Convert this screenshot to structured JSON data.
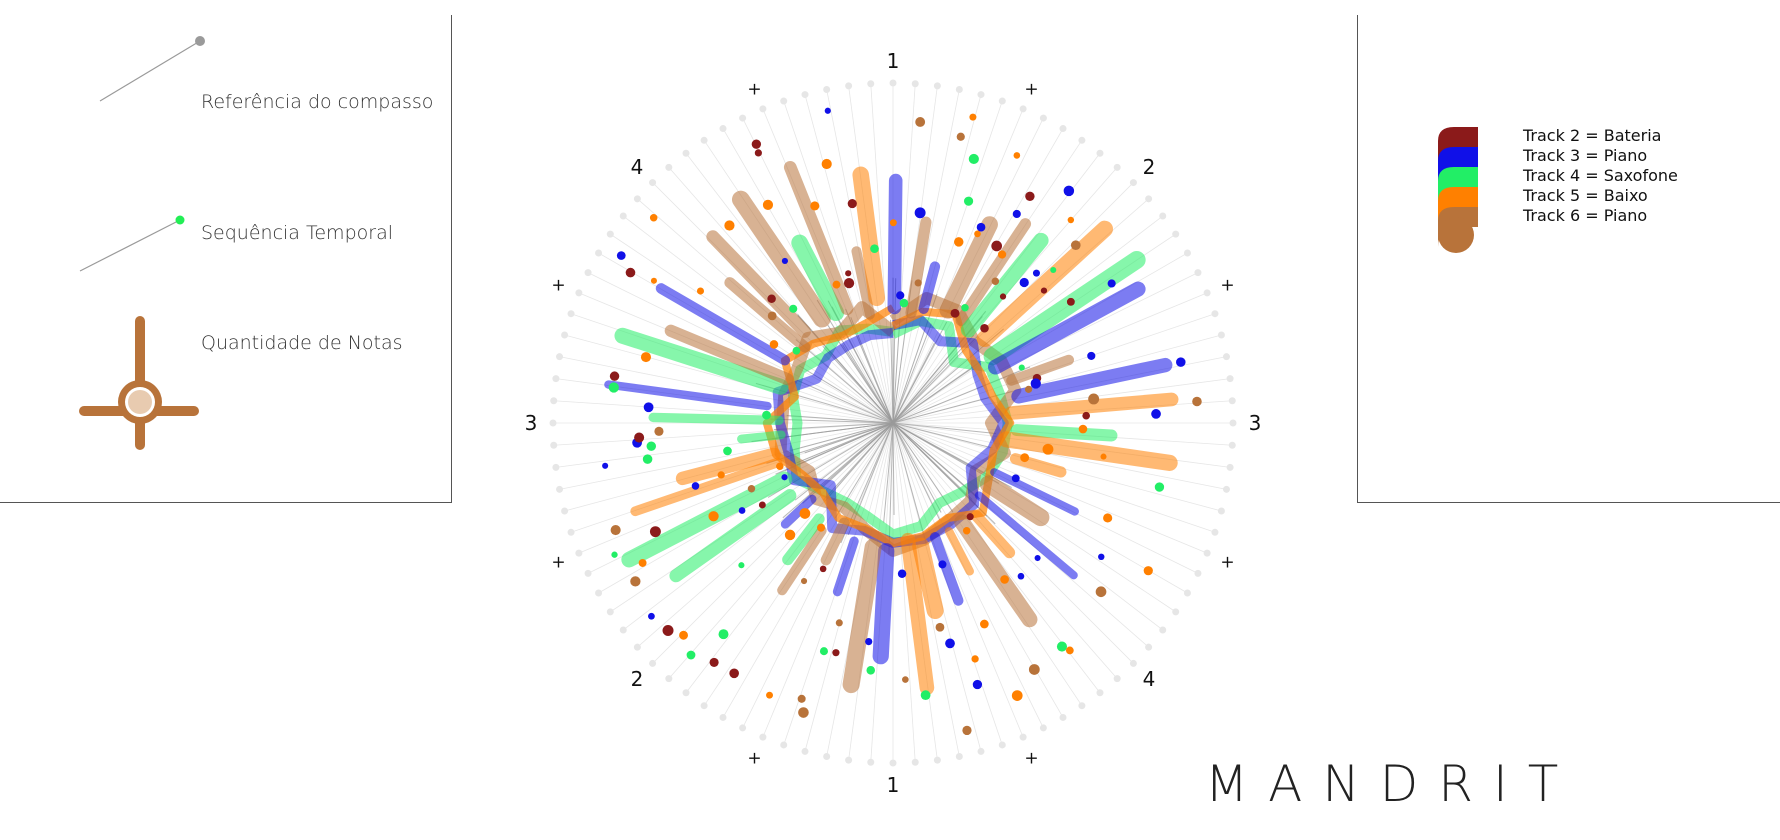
{
  "legend": {
    "items": [
      {
        "label": "Referência do compasso"
      },
      {
        "label": "Sequência Temporal"
      },
      {
        "label": "Quantidade de Notas"
      }
    ],
    "ref_color": "#9a9a9a",
    "seq_color": "#22ee55",
    "notes_color": "#b8733a"
  },
  "tracks": [
    {
      "label": "Track 2 = Bateria",
      "color": "#8b1a1a"
    },
    {
      "label": "Track 3 = Piano",
      "color": "#1010e8"
    },
    {
      "label": "Track 4 = Saxofone",
      "color": "#22ee66"
    },
    {
      "label": "Track 5 = Baixo",
      "color": "#ff8000"
    },
    {
      "label": "Track 6 = Piano",
      "color": "#b8733a"
    }
  ],
  "brand": "MANDRIT",
  "chart_data": {
    "type": "radial",
    "subdivisions": 96,
    "beat_labels": [
      "1",
      "2",
      "3",
      "4",
      "1",
      "2",
      "3",
      "4"
    ],
    "offbeat_label": "+",
    "reference_color": "#e6e6e6",
    "spoke_color": "#9a9a9a"
  }
}
